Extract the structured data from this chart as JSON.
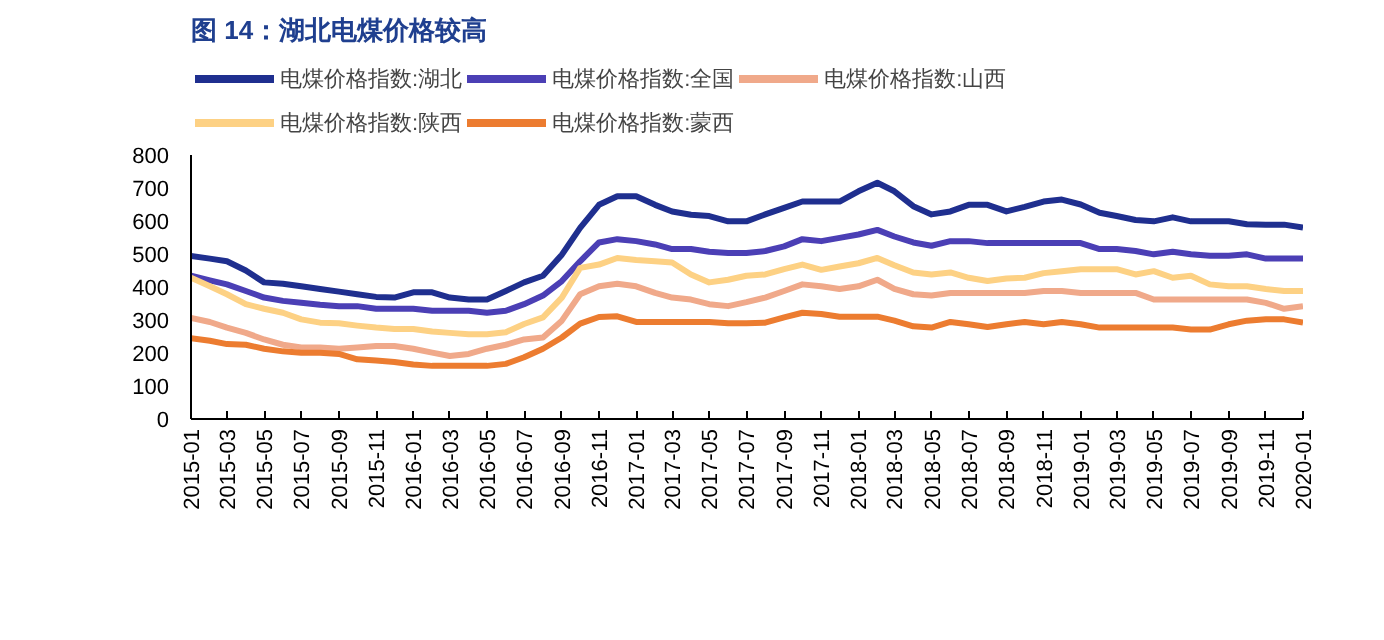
{
  "chart_data": {
    "type": "line",
    "title": "图 14：湖北电煤价格较高",
    "x": [
      "2015-01",
      "2015-02",
      "2015-03",
      "2015-04",
      "2015-05",
      "2015-06",
      "2015-07",
      "2015-08",
      "2015-09",
      "2015-10",
      "2015-11",
      "2015-12",
      "2016-01",
      "2016-02",
      "2016-03",
      "2016-04",
      "2016-05",
      "2016-06",
      "2016-07",
      "2016-08",
      "2016-09",
      "2016-10",
      "2016-11",
      "2016-12",
      "2017-01",
      "2017-02",
      "2017-03",
      "2017-04",
      "2017-05",
      "2017-06",
      "2017-07",
      "2017-08",
      "2017-09",
      "2017-10",
      "2017-11",
      "2017-12",
      "2018-01",
      "2018-02",
      "2018-03",
      "2018-04",
      "2018-05",
      "2018-06",
      "2018-07",
      "2018-08",
      "2018-09",
      "2018-10",
      "2018-11",
      "2018-12",
      "2019-01",
      "2019-02",
      "2019-03",
      "2019-04",
      "2019-05",
      "2019-06",
      "2019-07",
      "2019-08",
      "2019-09",
      "2019-10",
      "2019-11",
      "2019-12",
      "2020-01"
    ],
    "series": [
      {
        "name": "电煤价格指数:湖北",
        "color": "#1f2f8f",
        "values": [
          494,
          486,
          478,
          450,
          414,
          410,
          402,
          394,
          386,
          378,
          370,
          368,
          384,
          384,
          368,
          362,
          362,
          388,
          414,
          434,
          498,
          579,
          649,
          675,
          675,
          649,
          629,
          619,
          615,
          599,
          599,
          620,
          640,
          659,
          659,
          659,
          690,
          716,
          690,
          645,
          620,
          629,
          649,
          649,
          629,
          643,
          659,
          665,
          650,
          625,
          615,
          603,
          599,
          611,
          599,
          599,
          599,
          590,
          589,
          589,
          580
        ]
      },
      {
        "name": "电煤价格指数:全国",
        "color": "#4b3fb5",
        "values": [
          434,
          420,
          408,
          388,
          368,
          358,
          352,
          346,
          342,
          342,
          334,
          334,
          334,
          328,
          328,
          328,
          322,
          328,
          348,
          374,
          418,
          478,
          535,
          545,
          539,
          529,
          515,
          515,
          507,
          503,
          503,
          509,
          523,
          545,
          539,
          549,
          559,
          573,
          553,
          535,
          525,
          539,
          539,
          533,
          533,
          533,
          533,
          533,
          533,
          515,
          515,
          509,
          499,
          507,
          499,
          495,
          495,
          499,
          486,
          486,
          486
        ]
      },
      {
        "name": "电煤价格指数:山西",
        "color": "#f0a98a",
        "values": [
          306,
          294,
          277,
          261,
          241,
          225,
          217,
          217,
          213,
          217,
          221,
          221,
          213,
          201,
          191,
          197,
          213,
          225,
          241,
          247,
          298,
          378,
          402,
          410,
          402,
          382,
          368,
          362,
          348,
          342,
          354,
          368,
          388,
          408,
          402,
          394,
          402,
          422,
          394,
          378,
          374,
          382,
          382,
          382,
          382,
          382,
          388,
          388,
          382,
          382,
          382,
          382,
          362,
          362,
          362,
          362,
          362,
          362,
          352,
          334,
          342
        ]
      },
      {
        "name": "电煤价格指数:陕西",
        "color": "#fdd184",
        "values": [
          428,
          402,
          378,
          348,
          334,
          322,
          302,
          292,
          290,
          283,
          277,
          273,
          273,
          265,
          261,
          257,
          257,
          263,
          288,
          308,
          368,
          458,
          468,
          488,
          482,
          478,
          474,
          438,
          414,
          422,
          434,
          438,
          454,
          468,
          452,
          462,
          472,
          488,
          466,
          444,
          438,
          444,
          428,
          418,
          426,
          428,
          442,
          448,
          454,
          454,
          454,
          438,
          448,
          428,
          434,
          408,
          402,
          402,
          394,
          388,
          388
        ]
      },
      {
        "name": "电煤价格指数:蒙西",
        "color": "#ec7c30",
        "values": [
          245,
          237,
          227,
          225,
          213,
          205,
          201,
          201,
          197,
          181,
          177,
          173,
          165,
          161,
          161,
          161,
          161,
          167,
          187,
          213,
          247,
          289,
          309,
          311,
          294,
          294,
          294,
          294,
          294,
          290,
          290,
          292,
          308,
          322,
          318,
          310,
          310,
          310,
          298,
          281,
          277,
          294,
          287,
          279,
          287,
          294,
          287,
          294,
          287,
          277,
          277,
          277,
          277,
          277,
          271,
          271,
          287,
          298,
          302,
          302,
          292
        ]
      }
    ],
    "xlim": [
      "2015-01",
      "2020-01"
    ],
    "xticks": [
      "2015-01",
      "2015-03",
      "2015-05",
      "2015-07",
      "2015-09",
      "2015-11",
      "2016-01",
      "2016-03",
      "2016-05",
      "2016-07",
      "2016-09",
      "2016-11",
      "2017-01",
      "2017-03",
      "2017-05",
      "2017-07",
      "2017-09",
      "2017-11",
      "2018-01",
      "2018-03",
      "2018-05",
      "2018-07",
      "2018-09",
      "2018-11",
      "2019-01",
      "2019-03",
      "2019-05",
      "2019-07",
      "2019-09",
      "2019-11",
      "2020-01"
    ],
    "ylim": [
      0,
      800
    ],
    "yticks": [
      0,
      100,
      200,
      300,
      400,
      500,
      600,
      700,
      800
    ],
    "grid": false,
    "legend": "top",
    "line_style": "solid",
    "marker": "none"
  }
}
